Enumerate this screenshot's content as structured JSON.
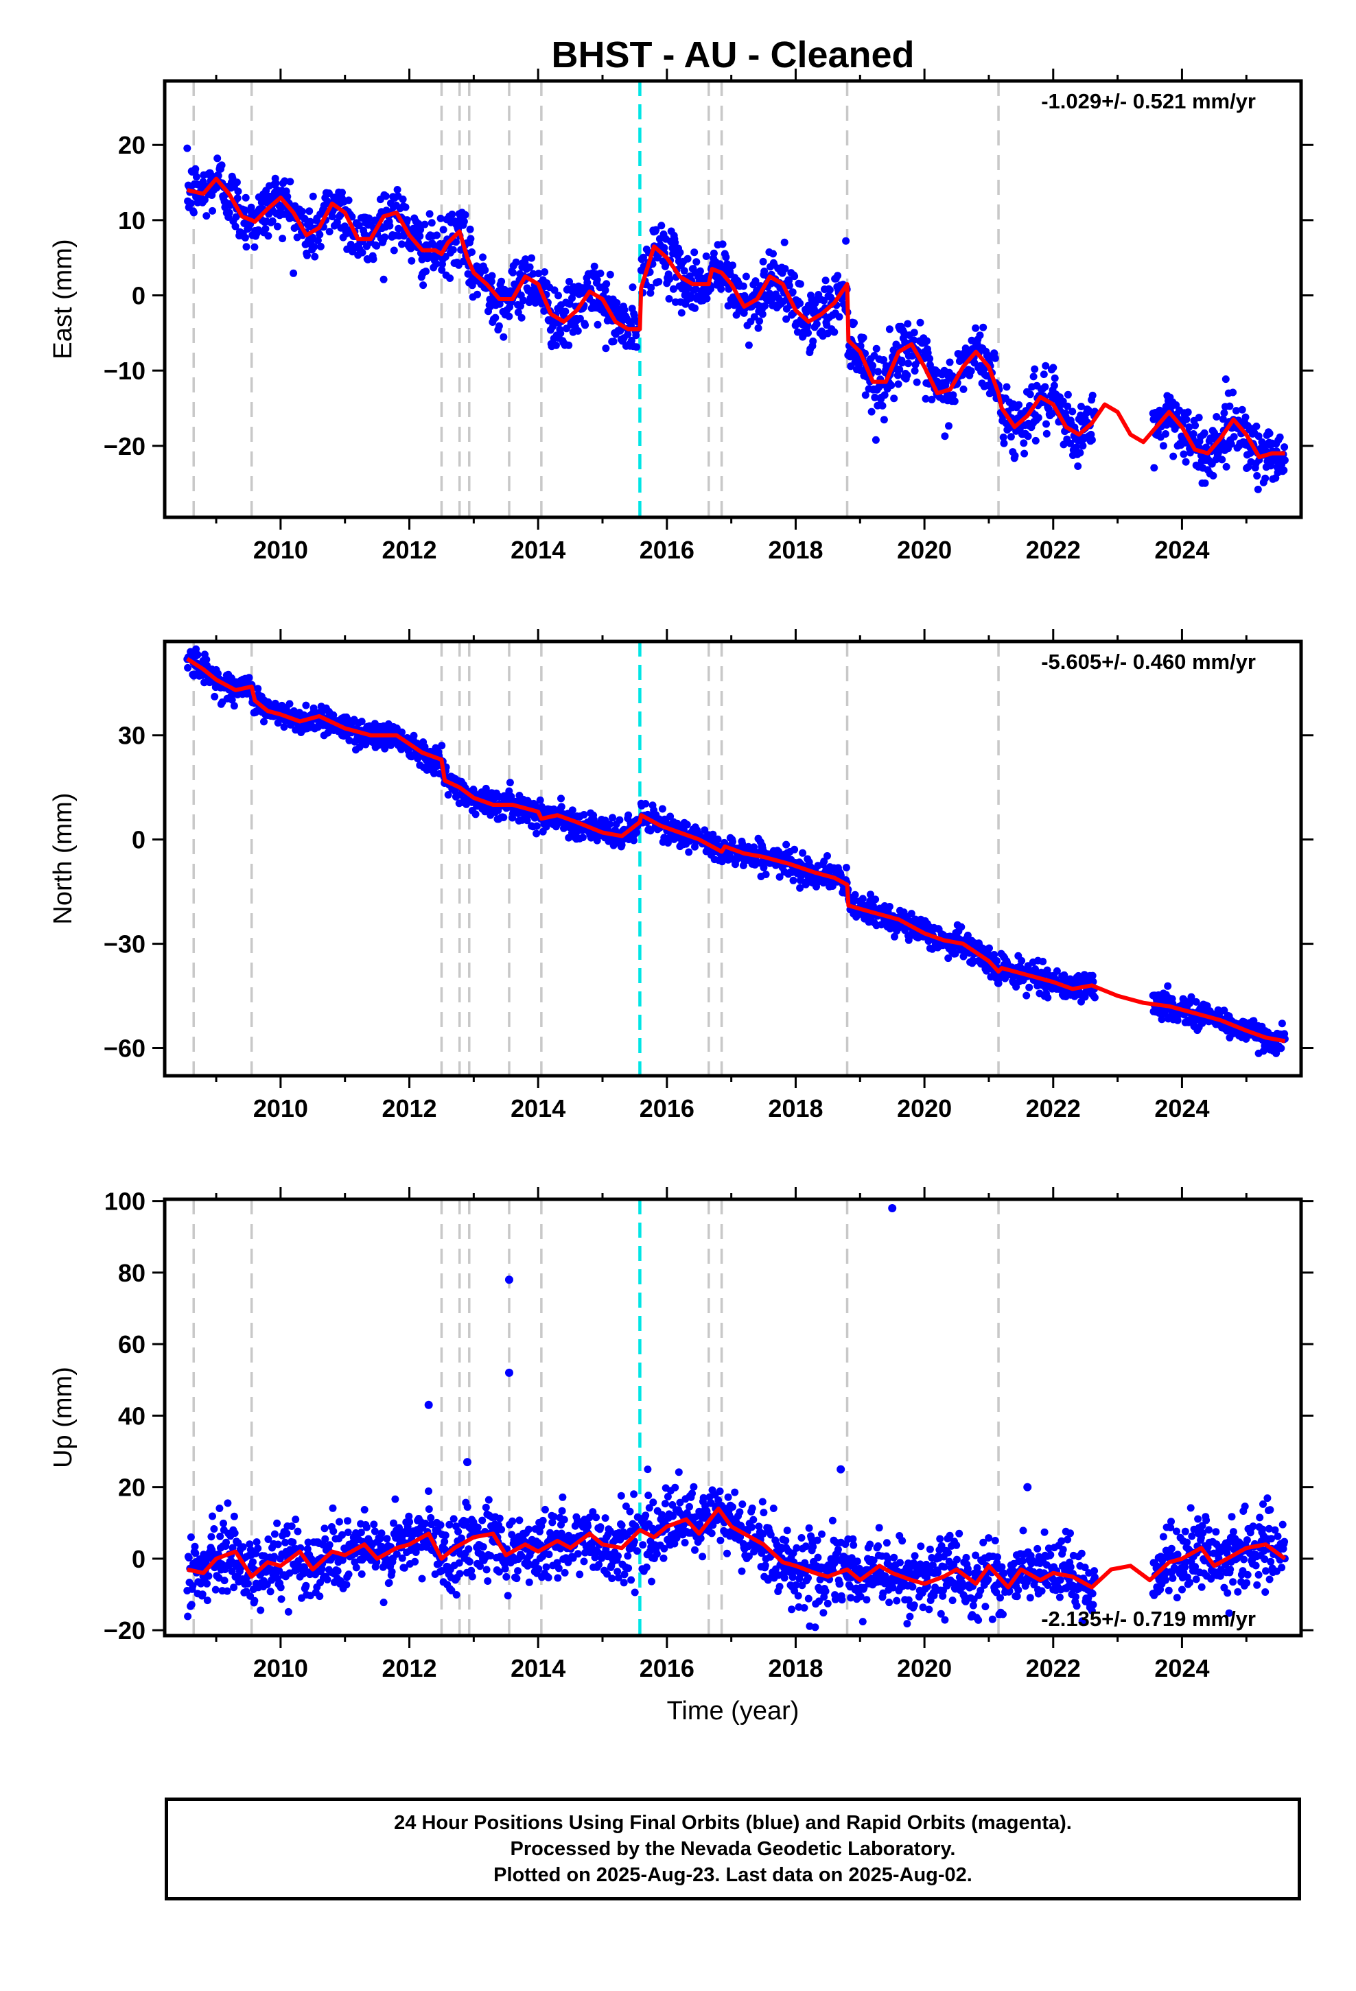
{
  "chart_data": {
    "title": "BHST  - AU - Cleaned",
    "type": "scatter",
    "xlabel": "Time (year)",
    "xlim": [
      2008.2,
      2025.85
    ],
    "xticks": [
      2010,
      2012,
      2014,
      2016,
      2018,
      2020,
      2022,
      2024
    ],
    "xtick_labels": [
      "2010",
      "2012",
      "2014",
      "2016",
      "2018",
      "2020",
      "2022",
      "2024"
    ],
    "colors": {
      "points": "#0000ff",
      "model": "#ff0000",
      "equipment_change": "#c8c8c8",
      "earthquake": "#00e5e5"
    },
    "equipment_change_lines": [
      2008.65,
      2009.55,
      2012.5,
      2012.78,
      2012.93,
      2013.55,
      2014.05,
      2016.65,
      2016.85,
      2018.8,
      2021.15
    ],
    "earthquake_lines": [
      2015.58
    ],
    "panels": [
      {
        "name": "east",
        "ylabel": "East (mm)",
        "ylim": [
          -29.5,
          28.5
        ],
        "yticks": [
          20,
          10,
          0,
          -10,
          -20
        ],
        "ytick_labels": [
          "20",
          "10",
          "0",
          "−10",
          "−20"
        ],
        "rate_label": "-1.029+/- 0.521 mm/yr",
        "data_segments": [
          [
            2008.55,
            2015.55
          ],
          [
            2015.6,
            2022.65
          ],
          [
            2023.55,
            2025.6
          ]
        ],
        "model": {
          "x": [
            2008.55,
            2008.8,
            2009.0,
            2009.2,
            2009.4,
            2009.55,
            2009.6,
            2009.8,
            2010.0,
            2010.2,
            2010.4,
            2010.6,
            2010.8,
            2011.0,
            2011.2,
            2011.4,
            2011.6,
            2011.8,
            2012.0,
            2012.2,
            2012.4,
            2012.5,
            2012.6,
            2012.78,
            2012.9,
            2013.0,
            2013.2,
            2013.4,
            2013.6,
            2013.8,
            2014.0,
            2014.2,
            2014.4,
            2014.6,
            2014.8,
            2015.0,
            2015.2,
            2015.4,
            2015.58,
            2015.6,
            2015.8,
            2016.0,
            2016.2,
            2016.4,
            2016.65,
            2016.7,
            2016.85,
            2017.0,
            2017.2,
            2017.4,
            2017.6,
            2017.8,
            2018.0,
            2018.2,
            2018.4,
            2018.6,
            2018.8,
            2018.82,
            2019.0,
            2019.2,
            2019.4,
            2019.6,
            2019.8,
            2020.0,
            2020.2,
            2020.4,
            2020.6,
            2020.8,
            2021.0,
            2021.15,
            2021.2,
            2021.4,
            2021.6,
            2021.8,
            2022.0,
            2022.2,
            2022.4,
            2022.6,
            2022.8,
            2023.0,
            2023.2,
            2023.4,
            2023.6,
            2023.8,
            2024.0,
            2024.2,
            2024.4,
            2024.6,
            2024.8,
            2025.0,
            2025.2,
            2025.4,
            2025.6
          ],
          "y": [
            14,
            13.5,
            15.5,
            13.5,
            10.5,
            10,
            9.8,
            11.5,
            13,
            11,
            8,
            9,
            12.2,
            11,
            7.5,
            7.5,
            10.5,
            11,
            8,
            6,
            6,
            5.5,
            7,
            8.5,
            5,
            3,
            1.5,
            -0.5,
            -0.5,
            2.5,
            1.5,
            -2.5,
            -3.5,
            -2,
            0.5,
            -0.5,
            -3.5,
            -4.5,
            -4.5,
            1,
            6.5,
            5,
            2.5,
            1.5,
            1.5,
            3.5,
            3,
            1.5,
            -1.5,
            -0.5,
            2.5,
            1.5,
            -2,
            -3.5,
            -2.5,
            -1,
            1.5,
            -6,
            -7.5,
            -11.5,
            -11.5,
            -7.5,
            -6.5,
            -9.5,
            -13,
            -12.5,
            -9.5,
            -7.5,
            -9.5,
            -13,
            -15,
            -17.5,
            -16,
            -13.5,
            -14.5,
            -17.5,
            -18.5,
            -17,
            -14.5,
            -15.5,
            -18.5,
            -19.5,
            -17.5,
            -15.5,
            -17.5,
            -20.5,
            -21,
            -19,
            -16.5,
            -18.5,
            -21.5,
            -21,
            -21
          ]
        }
      },
      {
        "name": "north",
        "ylabel": "North (mm)",
        "ylim": [
          -68,
          57
        ],
        "yticks": [
          30,
          0,
          -30,
          -60
        ],
        "ytick_labels": [
          "30",
          "0",
          "−30",
          "−60"
        ],
        "rate_label": "-5.605+/- 0.460 mm/yr",
        "data_segments": [
          [
            2008.55,
            2015.55
          ],
          [
            2015.6,
            2022.65
          ],
          [
            2023.55,
            2025.6
          ]
        ],
        "model": {
          "x": [
            2008.55,
            2008.8,
            2009.0,
            2009.3,
            2009.55,
            2009.6,
            2009.8,
            2010.0,
            2010.3,
            2010.6,
            2011.0,
            2011.4,
            2011.8,
            2012.2,
            2012.5,
            2012.55,
            2012.78,
            2013.0,
            2013.3,
            2013.6,
            2014.0,
            2014.05,
            2014.3,
            2014.6,
            2015.0,
            2015.3,
            2015.58,
            2015.6,
            2015.9,
            2016.2,
            2016.5,
            2016.65,
            2016.85,
            2016.9,
            2017.2,
            2017.5,
            2017.9,
            2018.3,
            2018.6,
            2018.8,
            2018.82,
            2019.2,
            2019.6,
            2020.0,
            2020.3,
            2020.6,
            2021.0,
            2021.15,
            2021.2,
            2021.6,
            2022.0,
            2022.3,
            2022.6,
            2023.0,
            2023.4,
            2023.8,
            2024.2,
            2024.6,
            2025.0,
            2025.3,
            2025.6
          ],
          "y": [
            52,
            49,
            46,
            43,
            44,
            40,
            37,
            36,
            34,
            35.5,
            32,
            30,
            30,
            25,
            23,
            17,
            15,
            12,
            10,
            10,
            8,
            6,
            7,
            5,
            2,
            1,
            5,
            7,
            4,
            2,
            0,
            -1.5,
            -3.5,
            -2,
            -4,
            -5,
            -7,
            -9.5,
            -11,
            -13,
            -19,
            -21,
            -23,
            -27,
            -29,
            -30,
            -35,
            -38,
            -37,
            -39,
            -41,
            -43,
            -42,
            -45,
            -47,
            -48,
            -50,
            -52,
            -55,
            -57,
            -58
          ]
        }
      },
      {
        "name": "up",
        "ylabel": "Up (mm)",
        "ylim": [
          -21.5,
          100.5
        ],
        "yticks": [
          100,
          80,
          60,
          40,
          20,
          0,
          -20
        ],
        "ytick_labels": [
          "100",
          "80",
          "60",
          "40",
          "20",
          "0",
          "−20"
        ],
        "rate_label": "-2.135+/- 0.719 mm/yr",
        "data_segments": [
          [
            2008.55,
            2015.55
          ],
          [
            2015.6,
            2022.65
          ],
          [
            2023.55,
            2025.6
          ]
        ],
        "outliers": {
          "x": [
            2012.3,
            2012.9,
            2013.55,
            2013.55,
            2018.7,
            2019.5,
            2021.6
          ],
          "y": [
            43,
            27,
            78,
            52,
            25,
            98,
            20
          ]
        },
        "model": {
          "x": [
            2008.55,
            2008.8,
            2009.0,
            2009.3,
            2009.55,
            2009.8,
            2010.0,
            2010.3,
            2010.5,
            2010.8,
            2011.0,
            2011.3,
            2011.5,
            2011.8,
            2012.0,
            2012.3,
            2012.5,
            2012.7,
            2013.0,
            2013.3,
            2013.5,
            2013.8,
            2014.0,
            2014.3,
            2014.5,
            2014.8,
            2015.0,
            2015.3,
            2015.58,
            2015.8,
            2016.0,
            2016.3,
            2016.5,
            2016.8,
            2017.0,
            2017.3,
            2017.5,
            2017.8,
            2018.0,
            2018.3,
            2018.5,
            2018.8,
            2019.0,
            2019.3,
            2019.5,
            2019.8,
            2020.0,
            2020.3,
            2020.5,
            2020.8,
            2021.0,
            2021.3,
            2021.5,
            2021.8,
            2022.0,
            2022.3,
            2022.6,
            2022.9,
            2023.2,
            2023.5,
            2023.8,
            2024.0,
            2024.3,
            2024.5,
            2024.8,
            2025.0,
            2025.3,
            2025.6
          ],
          "y": [
            -3,
            -4,
            0,
            2,
            -5,
            -1,
            -2,
            2,
            -3,
            2,
            1,
            4,
            0,
            3,
            4,
            7,
            0,
            3,
            6,
            7,
            1,
            4,
            2,
            5,
            3,
            7,
            4,
            3,
            8,
            6,
            9,
            11,
            7,
            14,
            9,
            6,
            4,
            -1,
            -2,
            -4,
            -5,
            -3,
            -6,
            -2,
            -4,
            -6,
            -7,
            -5,
            -3,
            -7,
            -2,
            -8,
            -3,
            -6,
            -4,
            -5,
            -8,
            -3,
            -2,
            -6,
            -1,
            0,
            3,
            -2,
            1,
            3,
            4,
            0
          ]
        }
      }
    ]
  },
  "footer": {
    "line1": "24 Hour Positions Using Final Orbits (blue) and Rapid Orbits (magenta).",
    "line2": "Processed by the Nevada Geodetic Laboratory.",
    "line3": "Plotted on 2025-Aug-23. Last data on 2025-Aug-02."
  }
}
